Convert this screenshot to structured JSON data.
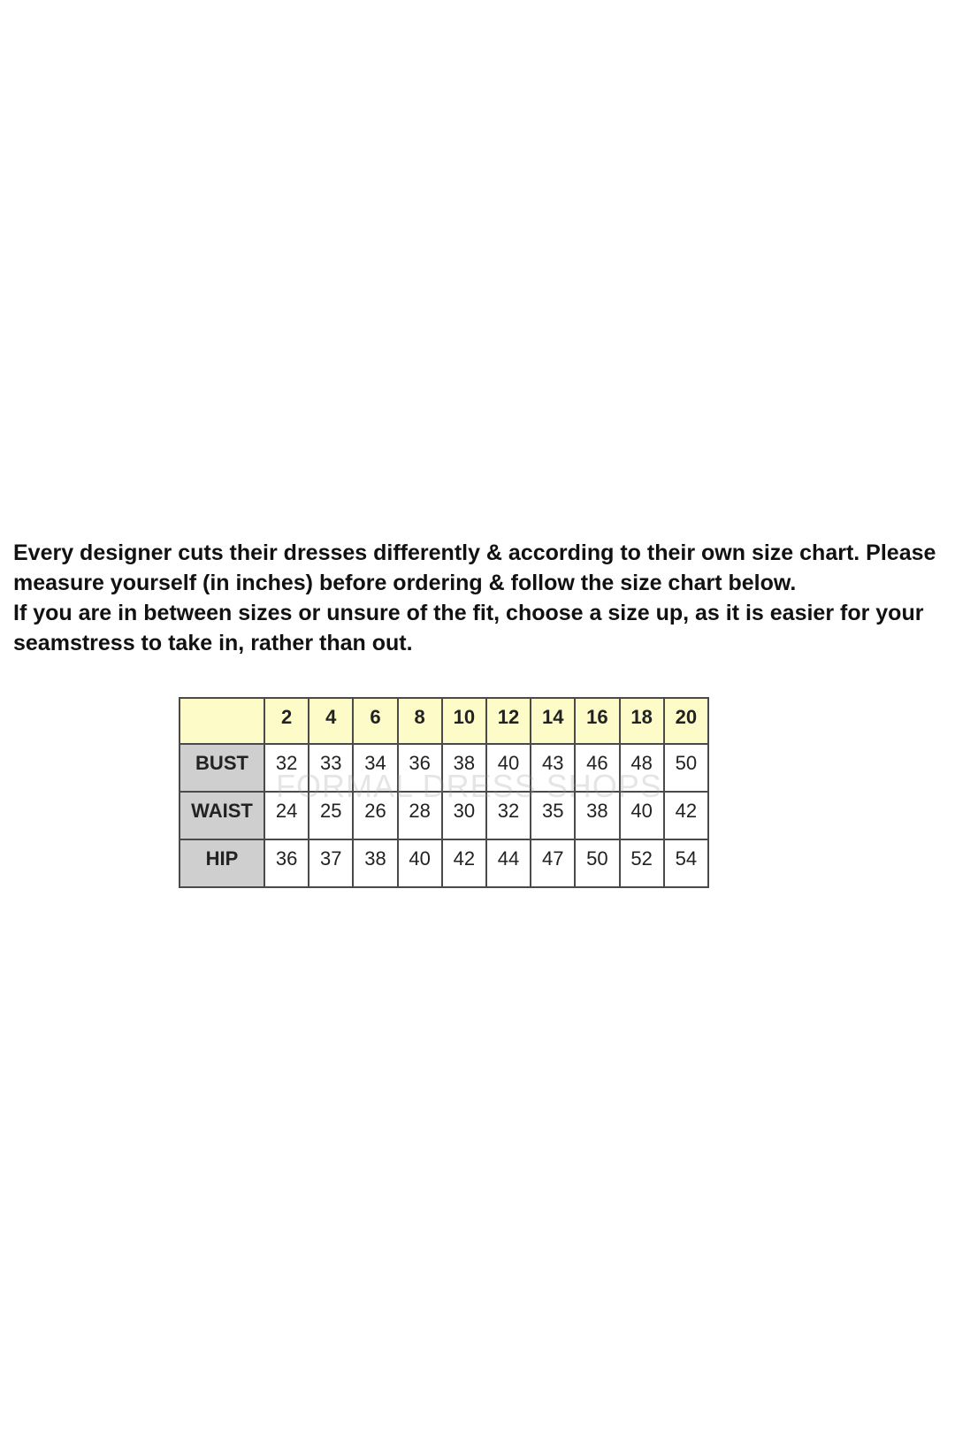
{
  "intro": {
    "paragraph1": "Every designer cuts their dresses differently & according to their own size chart. Please measure yourself (in inches) before ordering & follow the size chart below.",
    "paragraph2": "If you are in between sizes or unsure of the fit, choose a size up, as it is easier for your seamstress to take in, rather than out."
  },
  "watermark": "FORMAL DRESS SHOPS",
  "chart_data": {
    "type": "table",
    "columns": [
      "2",
      "4",
      "6",
      "8",
      "10",
      "12",
      "14",
      "16",
      "18",
      "20"
    ],
    "rows": [
      {
        "label": "BUST",
        "values": [
          "32",
          "33",
          "34",
          "36",
          "38",
          "40",
          "43",
          "46",
          "48",
          "50"
        ]
      },
      {
        "label": "WAIST",
        "values": [
          "24",
          "25",
          "26",
          "28",
          "30",
          "32",
          "35",
          "38",
          "40",
          "42"
        ]
      },
      {
        "label": "HIP",
        "values": [
          "36",
          "37",
          "38",
          "40",
          "42",
          "44",
          "47",
          "50",
          "52",
          "54"
        ]
      }
    ]
  },
  "colors": {
    "header_bg": "#fdfcc8",
    "row_label_bg": "#cfcfcf",
    "border": "#4a4a4a"
  }
}
